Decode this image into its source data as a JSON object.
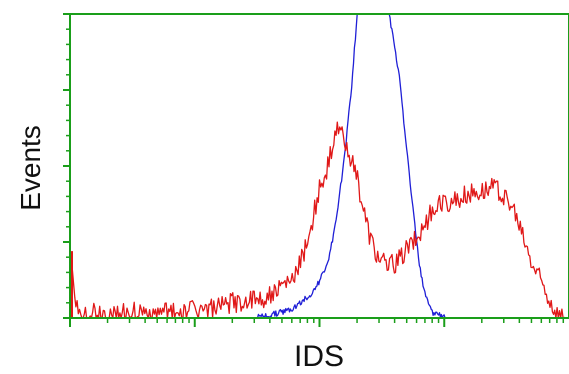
{
  "chart_data": {
    "type": "line",
    "title": "",
    "xlabel": "IDS",
    "ylabel": "Events",
    "x_scale": "log",
    "xlim": [
      1,
      10000
    ],
    "ylim": [
      0,
      100
    ],
    "grid": false,
    "legend": "none",
    "frame_color": "#1a9e1a",
    "series": [
      {
        "color": "#1f1fd6",
        "x": [
          1,
          10,
          20,
          30,
          40,
          50,
          60,
          70,
          80,
          90,
          100,
          120,
          140,
          160,
          180,
          200,
          230,
          250,
          270,
          300,
          330,
          360,
          400,
          450,
          500,
          550,
          600,
          650,
          700,
          750,
          800,
          900,
          1000,
          1100,
          1200
        ],
        "y": [
          0,
          0,
          0,
          0,
          1,
          2,
          3,
          5,
          7,
          9,
          12,
          20,
          35,
          55,
          75,
          100,
          100,
          100,
          100,
          100,
          100,
          100,
          90,
          75,
          55,
          40,
          25,
          14,
          8,
          4,
          2,
          1,
          0.5,
          0,
          0
        ]
      },
      {
        "color": "#e01818",
        "x": [
          1,
          1.05,
          1.1,
          1.2,
          1.5,
          2,
          3,
          5,
          7,
          10,
          15,
          20,
          30,
          40,
          50,
          60,
          70,
          80,
          90,
          100,
          110,
          120,
          130,
          140,
          150,
          160,
          170,
          180,
          200,
          220,
          250,
          280,
          300,
          350,
          400,
          450,
          500,
          600,
          700,
          800,
          1000,
          1200,
          1500,
          2000,
          2500,
          3000,
          3500,
          4000,
          4500,
          5000,
          6000,
          7000,
          8000,
          9000,
          10000
        ],
        "y": [
          22,
          18,
          4,
          1,
          2,
          1,
          2,
          1,
          2,
          3,
          3,
          5,
          6,
          7,
          10,
          12,
          18,
          25,
          34,
          42,
          47,
          52,
          57,
          62,
          60,
          58,
          56,
          52,
          46,
          38,
          28,
          22,
          20,
          17,
          18,
          20,
          23,
          26,
          31,
          35,
          38,
          38,
          41,
          42,
          43,
          40,
          36,
          30,
          24,
          18,
          12,
          6,
          2,
          0.5,
          0
        ]
      }
    ]
  }
}
